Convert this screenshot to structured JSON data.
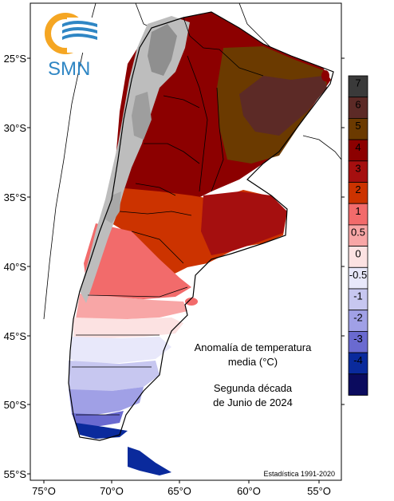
{
  "title_lines": [
    "Anomalía de temperatura",
    "media (°C)"
  ],
  "period_lines": [
    "Segunda década",
    "de Junio de 2024"
  ],
  "source_note": "Estadística 1991-2020",
  "logo": {
    "text": "SMN",
    "icon": "smn-logo-icon"
  },
  "lat_labels": [
    "25°S",
    "30°S",
    "35°S",
    "40°S",
    "45°S",
    "50°S",
    "55°S"
  ],
  "lon_labels": [
    "75°O",
    "70°O",
    "65°O",
    "60°O",
    "55°O"
  ],
  "legend": {
    "bins": [
      {
        "label": "7",
        "color": "#3a3a3a"
      },
      {
        "label": "6",
        "color": "#5c2a26"
      },
      {
        "label": "5",
        "color": "#6b3a00"
      },
      {
        "label": "4",
        "color": "#8c0000"
      },
      {
        "label": "3",
        "color": "#a50f0f"
      },
      {
        "label": "2",
        "color": "#cc3300"
      },
      {
        "label": "1",
        "color": "#f26b6b"
      },
      {
        "label": "0.5",
        "color": "#f8a6a6"
      },
      {
        "label": "0",
        "color": "#fce2e2"
      },
      {
        "label": "-0.5",
        "color": "#e8e8fa"
      },
      {
        "label": "-1",
        "color": "#c7c7f0"
      },
      {
        "label": "-2",
        "color": "#a0a0e6"
      },
      {
        "label": "-3",
        "color": "#6a6ad0"
      },
      {
        "label": "-4",
        "color": "#0a2a9c"
      },
      {
        "label": "",
        "color": "#0b0b5e"
      }
    ]
  },
  "colors": {
    "highlands": "#b8b8b8",
    "frame": "#000000",
    "logo_orange": "#f5a623",
    "logo_blue": "#2f86c4"
  }
}
